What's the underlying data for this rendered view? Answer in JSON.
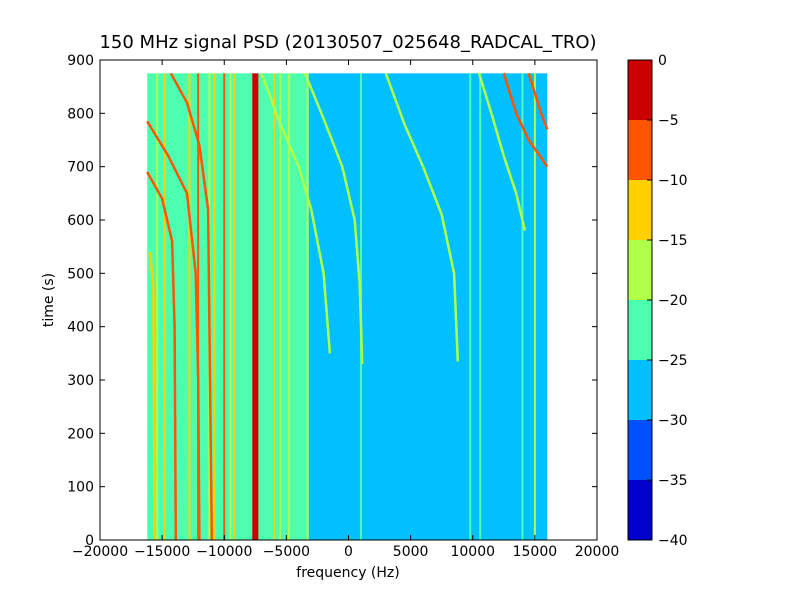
{
  "chart_data": {
    "type": "heatmap",
    "title": "150 MHz signal PSD (20130507_025648_RADCAL_TRO)",
    "xlabel": "frequency (Hz)",
    "ylabel": "time (s)",
    "xlim": [
      -20000,
      20000
    ],
    "ylim": [
      0,
      900
    ],
    "x_ticks": [
      -20000,
      -15000,
      -10000,
      -5000,
      0,
      5000,
      10000,
      15000,
      20000
    ],
    "x_tick_labels": [
      "−20000",
      "−15000",
      "−10000",
      "−5000",
      "0",
      "5000",
      "10000",
      "15000",
      "20000"
    ],
    "y_ticks": [
      0,
      100,
      200,
      300,
      400,
      500,
      600,
      700,
      800,
      900
    ],
    "y_tick_labels": [
      "0",
      "100",
      "200",
      "300",
      "400",
      "500",
      "600",
      "700",
      "800",
      "900"
    ],
    "data_extent": {
      "x": [
        -16200,
        16000
      ],
      "y": [
        0,
        875
      ]
    },
    "grid": false,
    "colorbar": {
      "levels": [
        -40,
        -35,
        -30,
        -25,
        -20,
        -15,
        -10,
        -5,
        0
      ],
      "tick_labels": [
        "−40",
        "−35",
        "−30",
        "−25",
        "−20",
        "−15",
        "−10",
        "−5",
        "0"
      ],
      "colors": [
        "#0000cc",
        "#0050ff",
        "#00c0ff",
        "#4cffb0",
        "#b0ff48",
        "#ffd000",
        "#ff5400",
        "#cc0000"
      ]
    },
    "background_by_band": [
      {
        "x": [
          -16200,
          -3200
        ],
        "level": -22.5
      },
      {
        "x": [
          -3200,
          16000
        ],
        "level": -27.5
      }
    ],
    "constant_lines": [
      {
        "x": -15400,
        "level": -17.5
      },
      {
        "x": -14800,
        "level": -12.5
      },
      {
        "x": -12800,
        "level": -12.5
      },
      {
        "x": -12100,
        "level": -7.5
      },
      {
        "x": -11200,
        "level": -17.5
      },
      {
        "x": -10800,
        "level": -12.5
      },
      {
        "x": -10000,
        "level": -7.5
      },
      {
        "x": -9500,
        "level": -17.5
      },
      {
        "x": -9200,
        "level": -12.5
      },
      {
        "x": -7500,
        "level": -2.5
      },
      {
        "x": -6000,
        "level": -12.5
      },
      {
        "x": -5500,
        "level": -17.5
      },
      {
        "x": -4800,
        "level": -17.5
      },
      {
        "x": -3300,
        "level": -17.5
      },
      {
        "x": 1000,
        "level": -22.5
      },
      {
        "x": 9800,
        "level": -22.5
      },
      {
        "x": 10600,
        "level": -22.5
      },
      {
        "x": 14000,
        "level": -22.5
      },
      {
        "x": 15000,
        "level": -17.5
      }
    ],
    "drifting_traces": [
      {
        "level": -7.5,
        "points": [
          [
            -16200,
            785
          ],
          [
            -14500,
            720
          ],
          [
            -13000,
            650
          ],
          [
            -12300,
            500
          ],
          [
            -12100,
            300
          ],
          [
            -12000,
            0
          ]
        ]
      },
      {
        "level": -7.5,
        "points": [
          [
            -16200,
            690
          ],
          [
            -15000,
            640
          ],
          [
            -14200,
            560
          ],
          [
            -14000,
            400
          ],
          [
            -13900,
            0
          ]
        ]
      },
      {
        "level": -7.5,
        "points": [
          [
            -14300,
            875
          ],
          [
            -13000,
            820
          ],
          [
            -12000,
            740
          ],
          [
            -11300,
            620
          ],
          [
            -11000,
            0
          ]
        ]
      },
      {
        "level": -12.5,
        "points": [
          [
            -16000,
            540
          ],
          [
            -15700,
            480
          ],
          [
            -15600,
            0
          ]
        ]
      },
      {
        "level": -17.5,
        "points": [
          [
            -7000,
            875
          ],
          [
            -5500,
            780
          ],
          [
            -4000,
            700
          ],
          [
            -3000,
            620
          ],
          [
            -2000,
            500
          ],
          [
            -1500,
            350
          ]
        ]
      },
      {
        "level": -17.5,
        "points": [
          [
            -3500,
            875
          ],
          [
            -2000,
            790
          ],
          [
            -500,
            700
          ],
          [
            500,
            600
          ],
          [
            900,
            480
          ],
          [
            1100,
            330
          ]
        ]
      },
      {
        "level": -17.5,
        "points": [
          [
            3000,
            875
          ],
          [
            4500,
            780
          ],
          [
            6000,
            700
          ],
          [
            7500,
            610
          ],
          [
            8500,
            500
          ],
          [
            8800,
            335
          ]
        ]
      },
      {
        "level": -17.5,
        "points": [
          [
            10500,
            875
          ],
          [
            11500,
            800
          ],
          [
            12500,
            720
          ],
          [
            13500,
            650
          ],
          [
            14200,
            580
          ]
        ]
      },
      {
        "level": -7.5,
        "points": [
          [
            12500,
            875
          ],
          [
            13500,
            800
          ],
          [
            14500,
            750
          ],
          [
            16000,
            700
          ]
        ]
      },
      {
        "level": -7.5,
        "points": [
          [
            14500,
            875
          ],
          [
            15500,
            800
          ],
          [
            16000,
            770
          ]
        ]
      }
    ]
  }
}
